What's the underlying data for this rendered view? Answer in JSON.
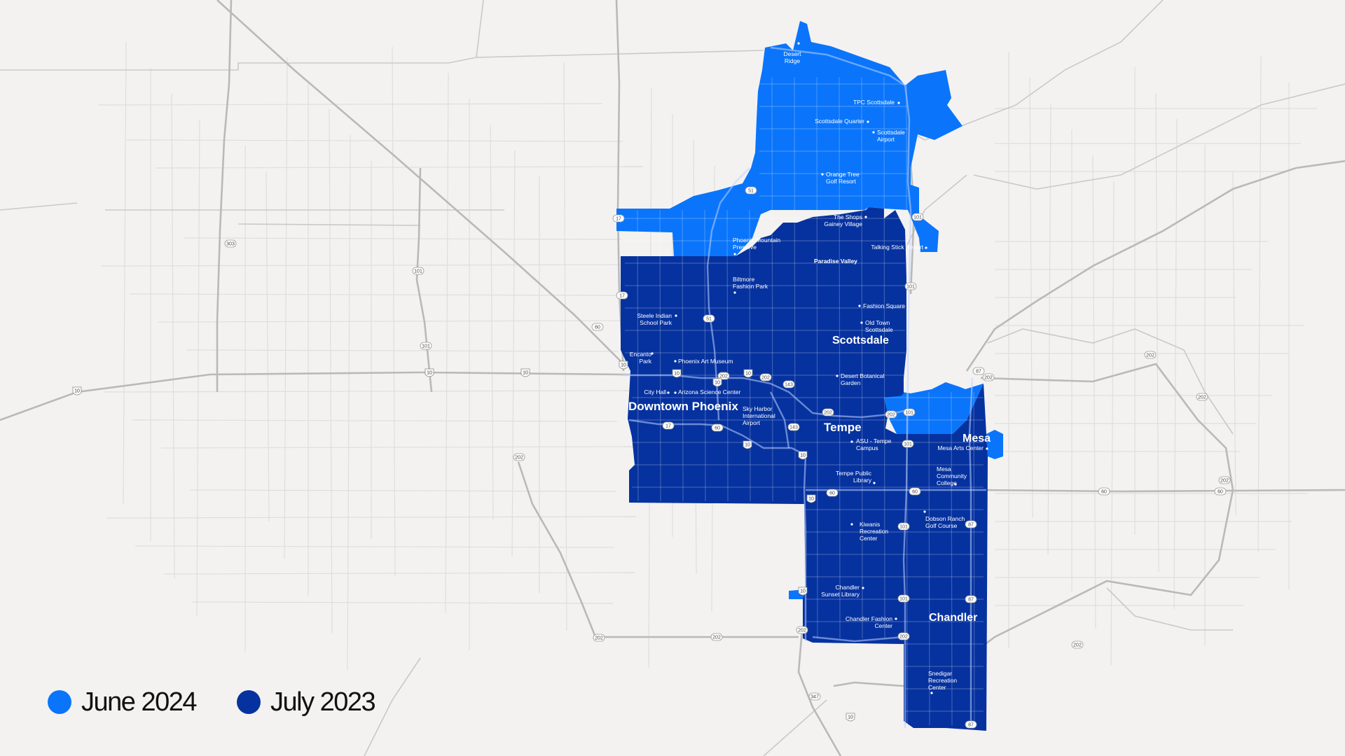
{
  "legend": [
    {
      "label": "June 2024",
      "color": "#0a75fb"
    },
    {
      "label": "July 2023",
      "color": "#06329f"
    }
  ],
  "map": {
    "background": "#f3f2f1",
    "cities": {
      "downtown_phoenix": "Downtown Phoenix",
      "scottsdale": "Scottsdale",
      "tempe": "Tempe",
      "mesa": "Mesa",
      "chandler": "Chandler",
      "paradise_valley": "Paradise Valley"
    },
    "poi": {
      "desert_ridge": [
        "Desert",
        "Ridge"
      ],
      "tpc": [
        "TPC Scottsdale"
      ],
      "scottsdale_quarter": [
        "Scottsdale Quarter"
      ],
      "scottsdale_airport": [
        "Scottsdale",
        "Airport"
      ],
      "orange_tree": [
        "Orange Tree",
        "Golf Resort"
      ],
      "shops_gainey": [
        "The Shops",
        "Gainey Village"
      ],
      "talking_stick": [
        "Talking Stick Resort"
      ],
      "phoenix_mountain": [
        "Phoenix Mountain",
        "Preserve"
      ],
      "biltmore": [
        "Biltmore",
        "Fashion Park"
      ],
      "fashion_square": [
        "Fashion Square"
      ],
      "old_town": [
        "Old Town",
        "Scottsdale"
      ],
      "steele_indian": [
        "Steele Indian",
        "School Park"
      ],
      "encanto": [
        "Encanto",
        "Park"
      ],
      "phoenix_art": [
        "Phoenix Art Museum"
      ],
      "desert_botanical": [
        "Desert Botanical",
        "Garden"
      ],
      "city_hall": [
        "City Hall"
      ],
      "arizona_science": [
        "Arizona Science Center"
      ],
      "sky_harbor": [
        "Sky Harbor",
        "International",
        "Airport"
      ],
      "asu_tempe": [
        "ASU - Tempe",
        "Campus"
      ],
      "mesa_arts": [
        "Mesa Arts Center"
      ],
      "tempe_library": [
        "Tempe Public",
        "Library"
      ],
      "mesa_college": [
        "Mesa",
        "Community",
        "College"
      ],
      "kiwanis": [
        "Kiwanis",
        "Recreation",
        "Center"
      ],
      "dobson_ranch": [
        "Dobson Ranch",
        "Golf Course"
      ],
      "chandler_sunset": [
        "Chandler",
        "Sunset Library"
      ],
      "chandler_fashion": [
        "Chandler Fashion",
        "Center"
      ],
      "snedigar": [
        "Snedigar",
        "Recreation",
        "Center"
      ]
    },
    "shields": {
      "r17": "17",
      "r51": "51",
      "r101": "101",
      "r202": "202",
      "r143": "143",
      "r60": "60",
      "r87": "87",
      "r303": "303",
      "r347": "347",
      "i10": "10"
    }
  }
}
